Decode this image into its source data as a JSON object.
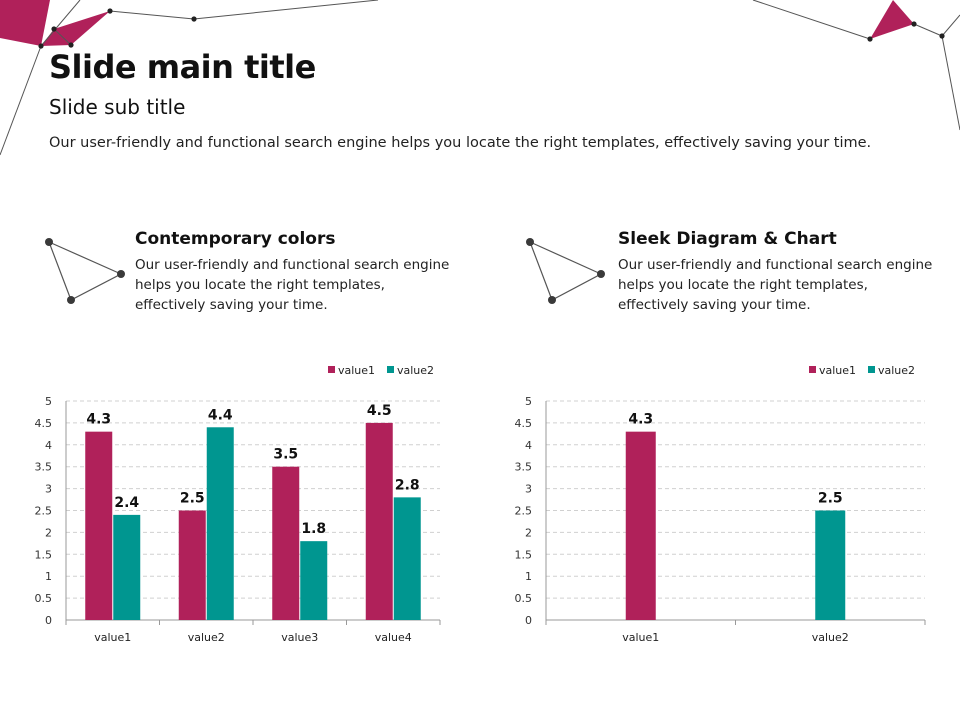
{
  "slide": {
    "title": "Slide main title",
    "subtitle": "Slide sub title",
    "description": "Our user-friendly and functional search engine helps you locate the right templates, effectively saving your time."
  },
  "features": [
    {
      "icon": "triangle-network-icon",
      "title": "Contemporary colors",
      "body": "Our user-friendly and functional search engine helps you locate the right templates, effectively saving your time."
    },
    {
      "icon": "triangle-network-icon",
      "title": "Sleek Diagram & Chart",
      "body": "Our user-friendly and functional search engine helps you locate the right templates, effectively saving your time."
    }
  ],
  "colors": {
    "accent": "#B0215A",
    "teal": "#009690",
    "line": "#666666",
    "node": "#333333"
  },
  "chart_data": [
    {
      "type": "bar",
      "title": "",
      "categories": [
        "value1",
        "value2",
        "value3",
        "value4"
      ],
      "series": [
        {
          "name": "value1",
          "color": "#B0215A",
          "values": [
            4.3,
            2.5,
            3.5,
            4.5
          ]
        },
        {
          "name": "value2",
          "color": "#009690",
          "values": [
            2.4,
            4.4,
            1.8,
            2.8
          ]
        }
      ],
      "ylim": [
        0,
        5
      ],
      "yticks": [
        0,
        0.5,
        1,
        1.5,
        2,
        2.5,
        3,
        3.5,
        4,
        4.5,
        5
      ],
      "grid": true,
      "legend": "top-right",
      "xlabel": "",
      "ylabel": ""
    },
    {
      "type": "bar",
      "title": "",
      "categories": [
        "value1",
        "value2"
      ],
      "series": [
        {
          "name": "value1",
          "color": "#B0215A",
          "values": [
            4.3,
            null
          ]
        },
        {
          "name": "value2",
          "color": "#009690",
          "values": [
            null,
            2.5
          ]
        }
      ],
      "ylim": [
        0,
        5
      ],
      "yticks": [
        0,
        0.5,
        1,
        1.5,
        2,
        2.5,
        3,
        3.5,
        4,
        4.5,
        5
      ],
      "grid": true,
      "legend": "top-right",
      "xlabel": "",
      "ylabel": ""
    }
  ]
}
